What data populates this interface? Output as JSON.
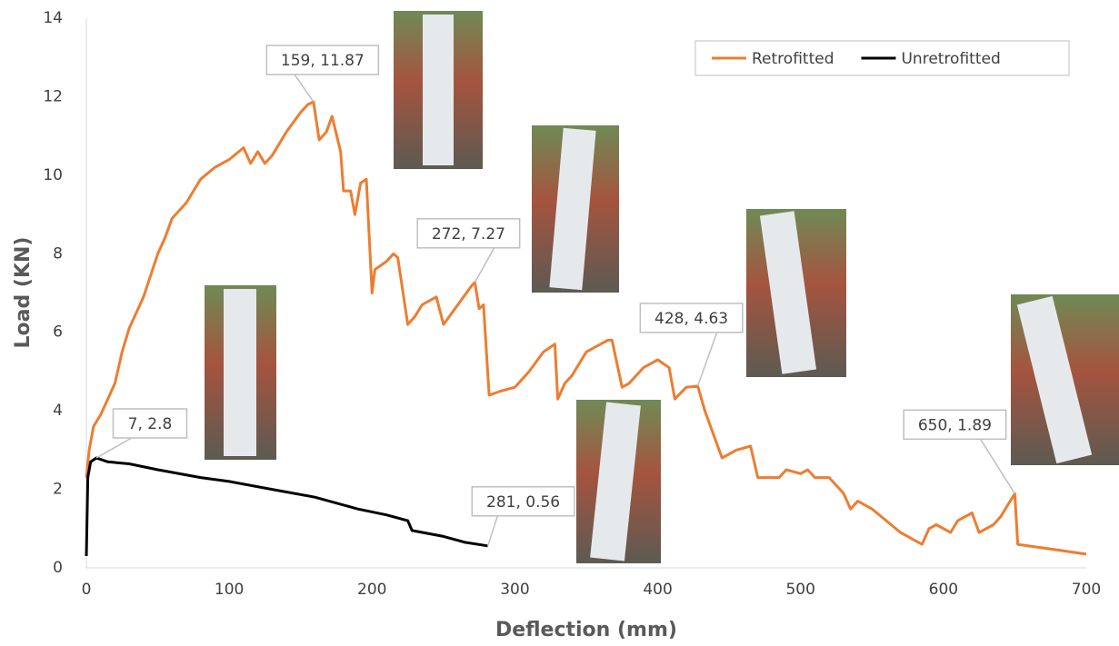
{
  "chart_data": {
    "type": "line",
    "x_label": "Deflection (mm)",
    "y_label": "Load (KN)",
    "xlim": [
      0,
      700
    ],
    "xticks": [
      0,
      100,
      200,
      300,
      400,
      500,
      600,
      700
    ],
    "ylim": [
      0,
      14
    ],
    "yticks": [
      0,
      2,
      4,
      6,
      8,
      10,
      12,
      14
    ],
    "legend": "upper right",
    "grid": false,
    "series": [
      {
        "name": "Retrofitted",
        "color": "#ed7d31",
        "x": [
          0,
          2,
          5,
          10,
          15,
          20,
          25,
          30,
          40,
          50,
          55,
          60,
          70,
          80,
          90,
          100,
          110,
          115,
          120,
          125,
          130,
          140,
          150,
          155,
          159,
          163,
          168,
          172,
          178,
          180,
          185,
          188,
          192,
          196,
          200,
          202,
          210,
          215,
          218,
          225,
          230,
          235,
          245,
          250,
          260,
          270,
          272,
          275,
          278,
          282,
          290,
          300,
          310,
          320,
          328,
          330,
          335,
          340,
          350,
          365,
          368,
          375,
          380,
          390,
          400,
          408,
          412,
          420,
          428,
          433,
          440,
          445,
          455,
          465,
          470,
          480,
          485,
          490,
          500,
          505,
          510,
          520,
          530,
          535,
          540,
          550,
          560,
          570,
          580,
          585,
          590,
          595,
          600,
          605,
          610,
          615,
          620,
          625,
          635,
          640,
          645,
          650,
          652,
          700
        ],
        "values": [
          2.3,
          3,
          3.6,
          3.9,
          4.3,
          4.7,
          5.5,
          6.1,
          6.9,
          8.0,
          8.4,
          8.9,
          9.3,
          9.9,
          10.2,
          10.4,
          10.7,
          10.3,
          10.6,
          10.3,
          10.5,
          11.1,
          11.6,
          11.8,
          11.87,
          10.9,
          11.1,
          11.5,
          10.6,
          9.6,
          9.6,
          9.0,
          9.8,
          9.9,
          7.0,
          7.6,
          7.8,
          8.0,
          7.9,
          6.2,
          6.4,
          6.7,
          6.9,
          6.2,
          6.7,
          7.2,
          7.27,
          6.6,
          6.7,
          4.4,
          4.5,
          4.6,
          5.0,
          5.5,
          5.7,
          4.3,
          4.7,
          4.9,
          5.5,
          5.8,
          5.8,
          4.6,
          4.7,
          5.1,
          5.3,
          5.1,
          4.3,
          4.6,
          4.63,
          4.0,
          3.3,
          2.8,
          3.0,
          3.1,
          2.3,
          2.3,
          2.3,
          2.5,
          2.4,
          2.5,
          2.3,
          2.3,
          1.9,
          1.5,
          1.7,
          1.5,
          1.2,
          0.9,
          0.7,
          0.6,
          1.0,
          1.1,
          1.0,
          0.9,
          1.2,
          1.3,
          1.4,
          0.9,
          1.1,
          1.3,
          1.6,
          1.89,
          0.6,
          0.35
        ]
      },
      {
        "name": "Unretrofitted",
        "color": "#000000",
        "x": [
          0,
          1,
          3,
          7,
          15,
          30,
          50,
          80,
          100,
          130,
          160,
          190,
          210,
          225,
          228,
          250,
          265,
          281
        ],
        "values": [
          0.3,
          2.3,
          2.7,
          2.8,
          2.7,
          2.65,
          2.5,
          2.3,
          2.2,
          2.0,
          1.8,
          1.5,
          1.35,
          1.2,
          0.95,
          0.8,
          0.65,
          0.56
        ]
      }
    ],
    "annotations": [
      {
        "text": "159, 11.87",
        "x": 159,
        "y": 11.87
      },
      {
        "text": "272, 7.27",
        "x": 272,
        "y": 7.27
      },
      {
        "text": "428, 4.63",
        "x": 428,
        "y": 4.63
      },
      {
        "text": "650, 1.89",
        "x": 650,
        "y": 1.89
      },
      {
        "text": "7, 2.8",
        "x": 7,
        "y": 2.8
      },
      {
        "text": "281, 0.56",
        "x": 281,
        "y": 0.56
      }
    ]
  }
}
